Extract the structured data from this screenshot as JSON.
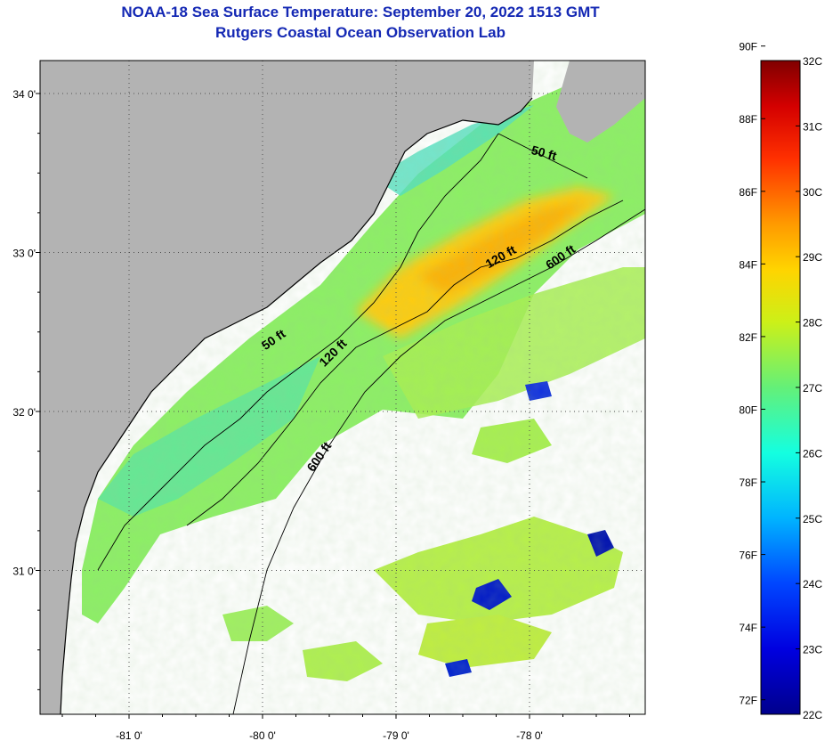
{
  "title": {
    "line1": "NOAA-18 Sea Surface Temperature:  September 20, 2022 1513 GMT",
    "line2": "Rutgers Coastal Ocean Observation Lab"
  },
  "map": {
    "lat_labels": [
      {
        "label": "34 0'",
        "lat": 34.0
      },
      {
        "label": "33 0'",
        "lat": 33.0
      },
      {
        "label": "32 0'",
        "lat": 32.0
      },
      {
        "label": "31 0'",
        "lat": 31.0
      }
    ],
    "lon_labels": [
      {
        "label": "-81 0'",
        "lon": -81.0
      },
      {
        "label": "-80 0'",
        "lon": -80.0
      },
      {
        "label": "-79 0'",
        "lon": -79.0
      },
      {
        "label": "-78 0'",
        "lon": -78.0
      }
    ],
    "depth_labels": [
      {
        "text": "50 ft",
        "lon": -77.9,
        "lat": 33.6
      },
      {
        "text": "50 ft",
        "lon": -79.9,
        "lat": 32.43
      },
      {
        "text": "120 ft",
        "lon": -78.2,
        "lat": 32.95
      },
      {
        "text": "120 ft",
        "lon": -79.45,
        "lat": 32.35
      },
      {
        "text": "600 ft",
        "lon": -77.75,
        "lat": 32.95
      },
      {
        "text": "600 ft",
        "lon": -79.55,
        "lat": 31.7
      }
    ],
    "colors": {
      "land": "#b3b3b3",
      "cloud": "#ffffff",
      "grid": "#505050"
    }
  },
  "colorbar": {
    "fahrenheit_labels": [
      "90F",
      "88F",
      "86F",
      "84F",
      "82F",
      "80F",
      "78F",
      "76F",
      "74F",
      "72F"
    ],
    "celsius_labels": [
      "32C",
      "31C",
      "30C",
      "29C",
      "28C",
      "27C",
      "26C",
      "25C",
      "24C",
      "23C",
      "22C"
    ],
    "range_c": [
      22,
      32
    ]
  }
}
